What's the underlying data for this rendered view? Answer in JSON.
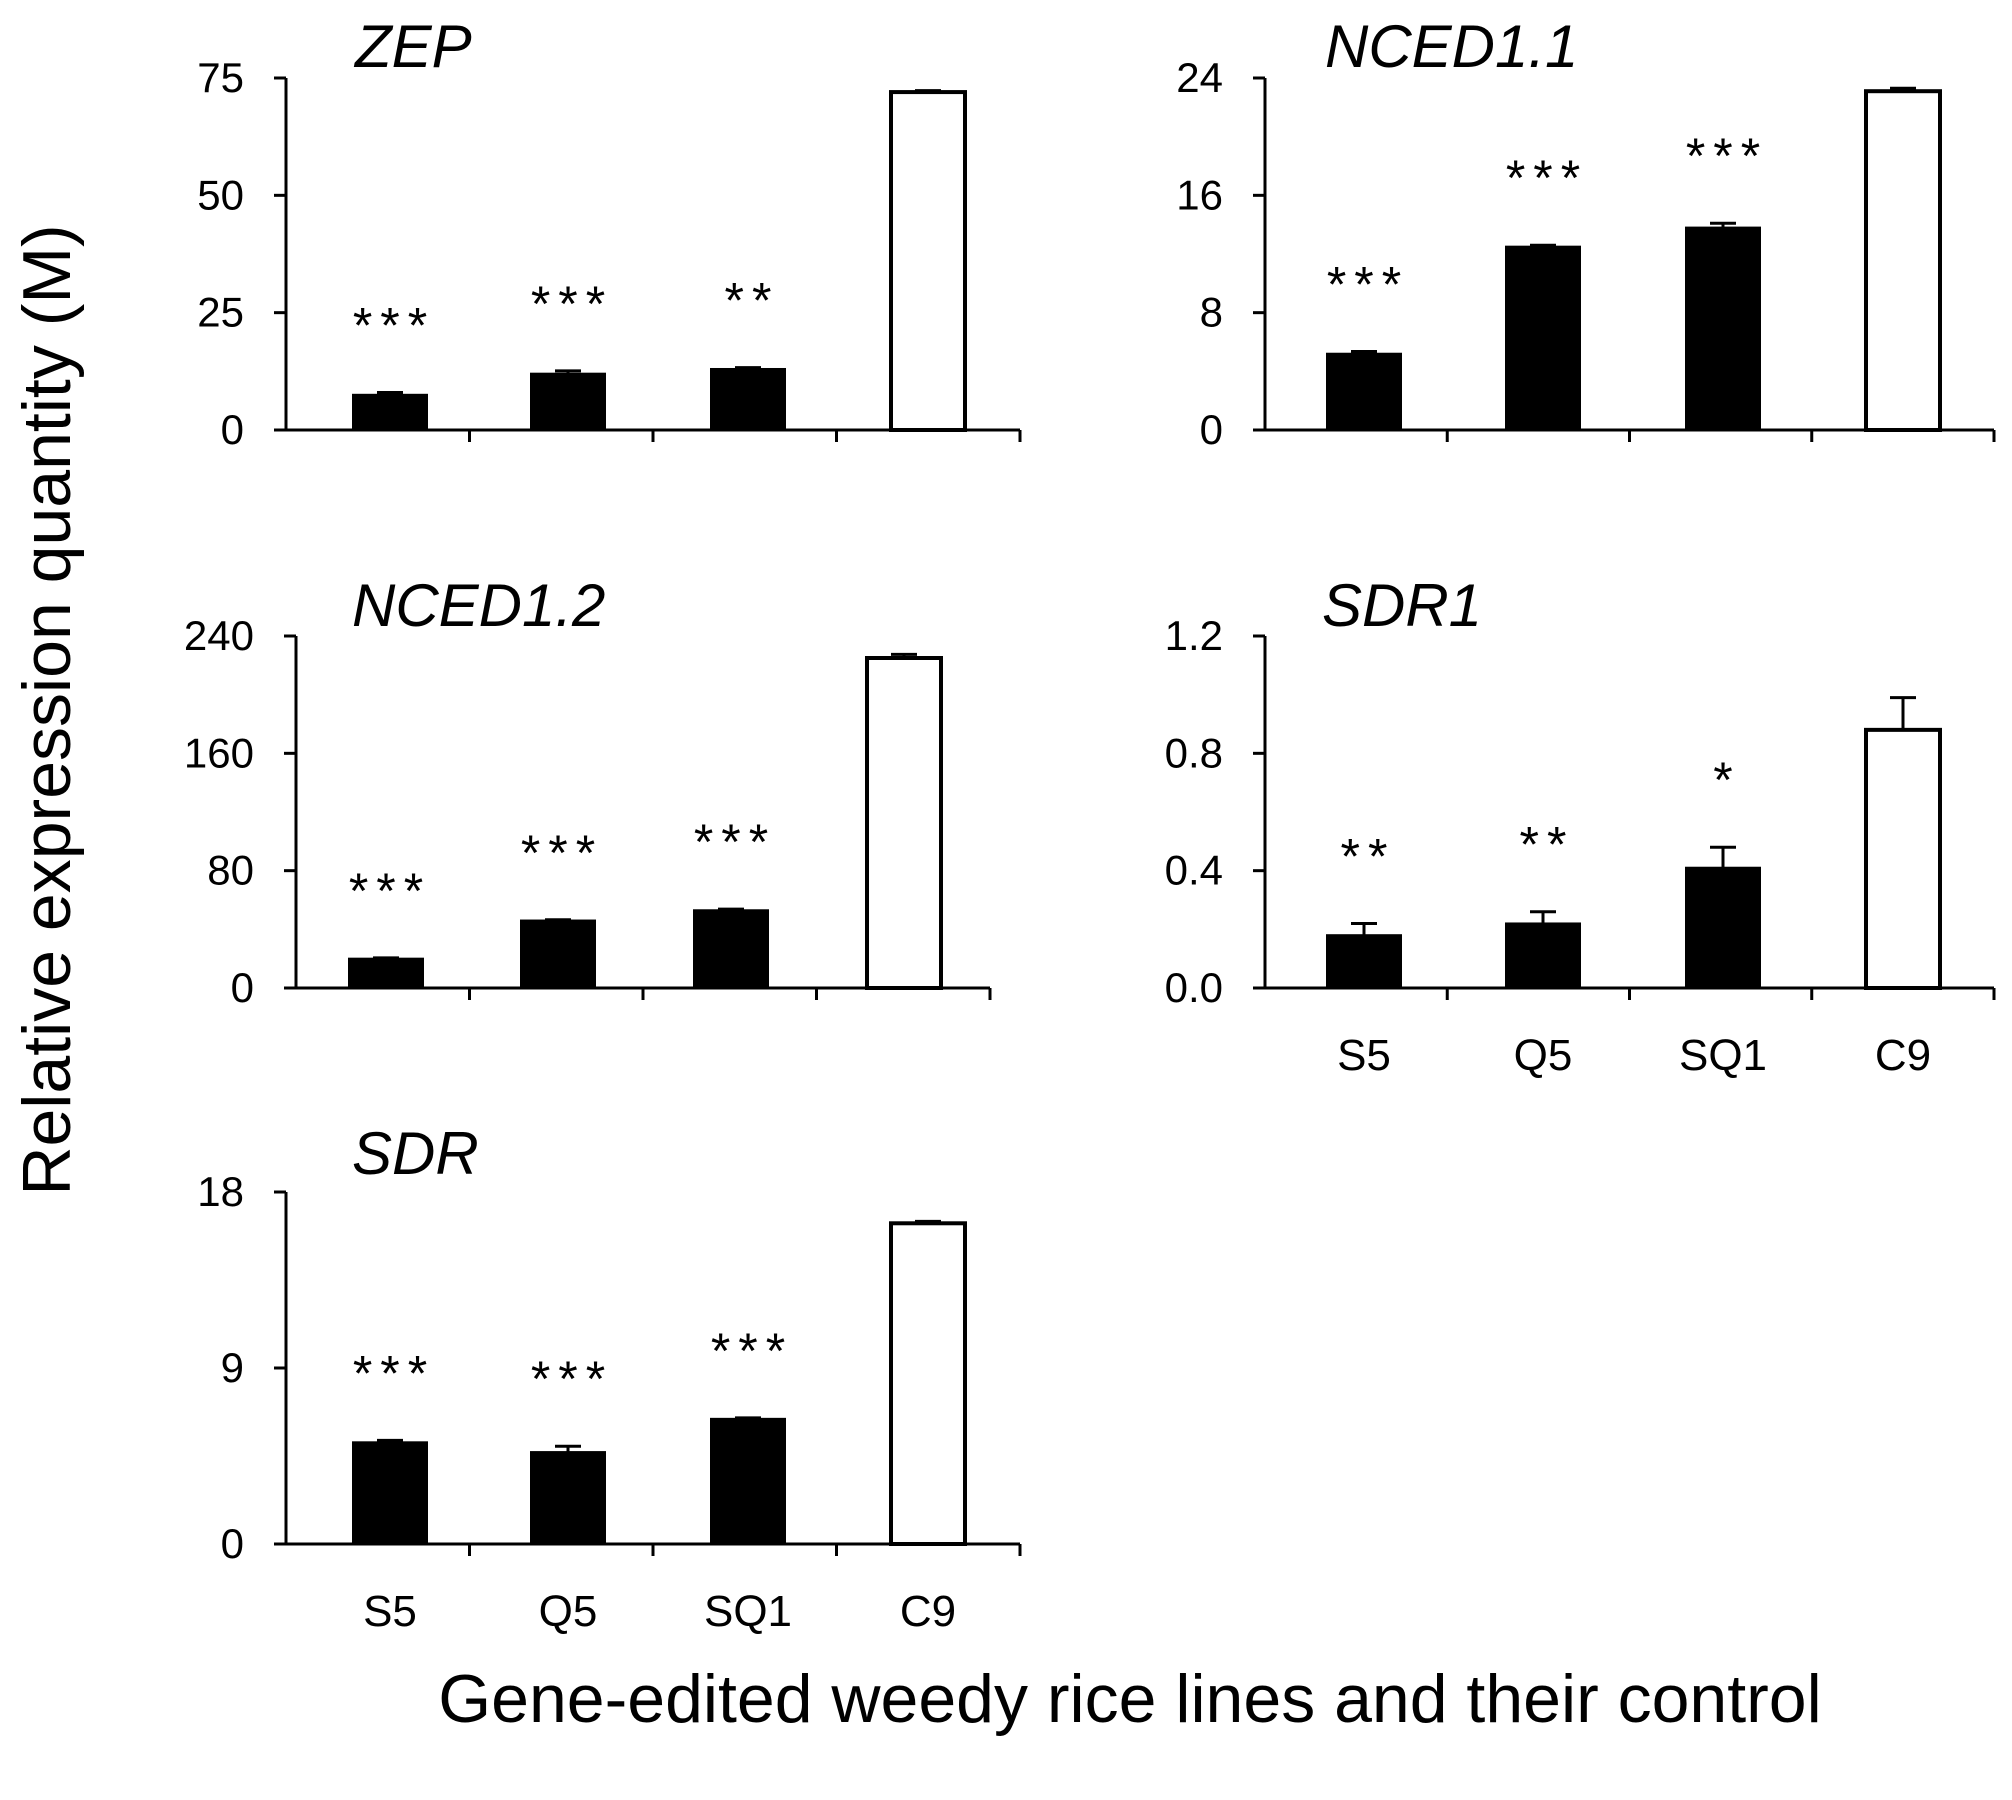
{
  "figure": {
    "ylabel": "Relative expression quantity (M)",
    "xlabel": "Gene-edited weedy rice lines and their control"
  },
  "chart_data": [
    {
      "type": "bar",
      "title": "ZEP",
      "categories": [
        "S5",
        "Q5",
        "SQ1",
        "C9"
      ],
      "values": [
        7.5,
        12,
        13,
        72
      ],
      "errors": [
        0.5,
        0.6,
        0.3,
        0.3
      ],
      "significance": [
        "***",
        "***",
        "**",
        ""
      ],
      "fills": [
        "black",
        "black",
        "black",
        "white"
      ],
      "ylim": [
        0,
        75
      ],
      "yticks": [
        "0",
        "25",
        "50",
        "75"
      ],
      "show_category_labels": false
    },
    {
      "type": "bar",
      "title": "NCED1.1",
      "categories": [
        "S5",
        "Q5",
        "SQ1",
        "C9"
      ],
      "values": [
        5.2,
        12.5,
        13.8,
        23.1
      ],
      "errors": [
        0.15,
        0.1,
        0.3,
        0.2
      ],
      "significance": [
        "***",
        "***",
        "***",
        ""
      ],
      "fills": [
        "black",
        "black",
        "black",
        "white"
      ],
      "ylim": [
        0,
        24
      ],
      "yticks": [
        "0",
        "8",
        "16",
        "24"
      ],
      "show_category_labels": false
    },
    {
      "type": "bar",
      "title": "NCED1.2",
      "categories": [
        "S5",
        "Q5",
        "SQ1",
        "C9"
      ],
      "values": [
        20,
        46,
        53,
        225
      ],
      "errors": [
        0.5,
        0.5,
        0.8,
        2.5
      ],
      "significance": [
        "***",
        "***",
        "***",
        ""
      ],
      "fills": [
        "black",
        "black",
        "black",
        "white"
      ],
      "ylim": [
        0,
        240
      ],
      "yticks": [
        "0",
        "80",
        "160",
        "240"
      ],
      "show_category_labels": false
    },
    {
      "type": "bar",
      "title": "SDR1",
      "categories": [
        "S5",
        "Q5",
        "SQ1",
        "C9"
      ],
      "values": [
        0.18,
        0.22,
        0.41,
        0.88
      ],
      "errors": [
        0.04,
        0.04,
        0.07,
        0.11
      ],
      "significance": [
        "**",
        "**",
        "*",
        ""
      ],
      "fills": [
        "black",
        "black",
        "black",
        "white"
      ],
      "ylim": [
        0,
        1.2
      ],
      "yticks": [
        "0.0",
        "0.4",
        "0.8",
        "1.2"
      ],
      "show_category_labels": true
    },
    {
      "type": "bar",
      "title": "SDR",
      "categories": [
        "S5",
        "Q5",
        "SQ1",
        "C9"
      ],
      "values": [
        5.2,
        4.7,
        6.4,
        16.4
      ],
      "errors": [
        0.1,
        0.3,
        0.05,
        0.1
      ],
      "significance": [
        "***",
        "***",
        "***",
        ""
      ],
      "fills": [
        "black",
        "black",
        "black",
        "white"
      ],
      "ylim": [
        0,
        18
      ],
      "yticks": [
        "0",
        "9",
        "18"
      ],
      "show_category_labels": true
    }
  ]
}
